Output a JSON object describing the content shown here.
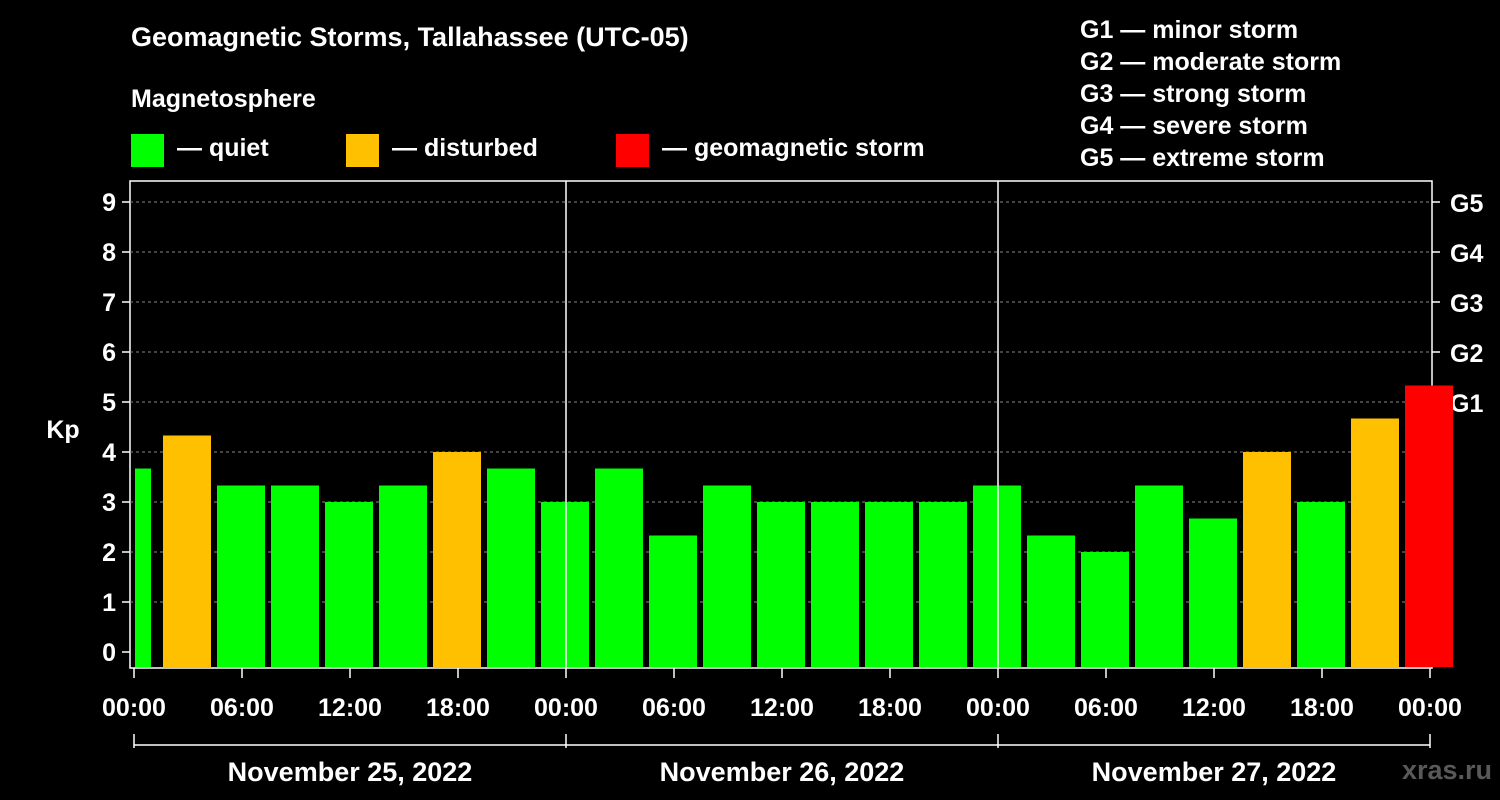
{
  "chart_data": {
    "type": "bar",
    "title": "Geomagnetic Storms, Tallahassee (UTC-05)",
    "subtitle": "Magnetosphere",
    "ylabel": "Kp",
    "ylim": [
      0,
      9
    ],
    "y_ticks": [
      "0",
      "1",
      "2",
      "3",
      "4",
      "5",
      "6",
      "7",
      "8",
      "9"
    ],
    "right_ticks": [
      {
        "value": 5,
        "label": "G1"
      },
      {
        "value": 6,
        "label": "G2"
      },
      {
        "value": 7,
        "label": "G3"
      },
      {
        "value": 8,
        "label": "G4"
      },
      {
        "value": 9,
        "label": "G5"
      }
    ],
    "x_tick_labels": [
      "00:00",
      "06:00",
      "12:00",
      "18:00",
      "00:00",
      "06:00",
      "12:00",
      "18:00",
      "00:00",
      "06:00",
      "12:00",
      "18:00",
      "00:00"
    ],
    "days": [
      "November 25, 2022",
      "November 26, 2022",
      "November 27, 2022"
    ],
    "categories": [
      "Nov 25 00:00",
      "Nov 25 03:00",
      "Nov 25 06:00",
      "Nov 25 09:00",
      "Nov 25 12:00",
      "Nov 25 15:00",
      "Nov 25 18:00",
      "Nov 25 21:00",
      "Nov 26 00:00",
      "Nov 26 03:00",
      "Nov 26 06:00",
      "Nov 26 09:00",
      "Nov 26 12:00",
      "Nov 26 15:00",
      "Nov 26 18:00",
      "Nov 26 21:00",
      "Nov 27 00:00",
      "Nov 27 03:00",
      "Nov 27 06:00",
      "Nov 27 09:00",
      "Nov 27 12:00",
      "Nov 27 15:00",
      "Nov 27 18:00",
      "Nov 27 21:00"
    ],
    "leading_partial": {
      "value": 3.67,
      "status": "quiet"
    },
    "values": [
      4.33,
      3.33,
      3.33,
      3.0,
      3.33,
      4.0,
      3.67,
      3.0,
      3.67,
      2.33,
      3.33,
      3.0,
      3.0,
      3.0,
      3.0,
      3.33,
      2.33,
      2.0,
      3.33,
      2.67,
      4.0,
      3.0,
      4.67,
      5.33
    ],
    "status": [
      "disturbed",
      "quiet",
      "quiet",
      "quiet",
      "quiet",
      "disturbed",
      "quiet",
      "quiet",
      "quiet",
      "quiet",
      "quiet",
      "quiet",
      "quiet",
      "quiet",
      "quiet",
      "quiet",
      "quiet",
      "quiet",
      "quiet",
      "quiet",
      "disturbed",
      "quiet",
      "disturbed",
      "storm"
    ],
    "grid": true,
    "legend_placement": "top-left"
  },
  "legend": [
    {
      "key": "quiet",
      "label": "— quiet",
      "color": "#00ff00"
    },
    {
      "key": "disturbed",
      "label": "— disturbed",
      "color": "#ffc000"
    },
    {
      "key": "storm",
      "label": "— geomagnetic storm",
      "color": "#ff0000"
    }
  ],
  "storm_scale": [
    "G1 — minor storm",
    "G2 — moderate storm",
    "G3 — strong storm",
    "G4 — severe storm",
    "G5 — extreme storm"
  ],
  "watermark": "xras.ru"
}
